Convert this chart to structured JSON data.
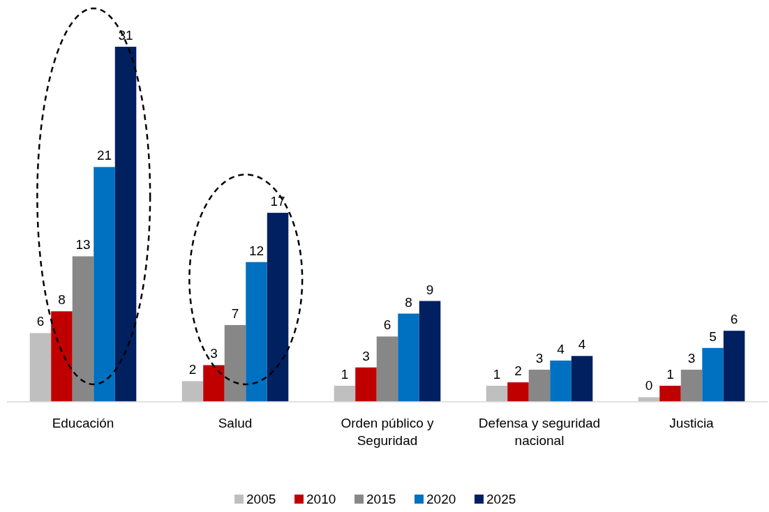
{
  "chart_data": {
    "type": "bar",
    "categories": [
      "Educación",
      "Salud",
      "Orden público y Seguridad",
      "Defensa y seguridad nacional",
      "Justicia"
    ],
    "series": [
      {
        "name": "2005",
        "color": "#bfbfbf",
        "values": [
          6.0,
          1.8,
          1.4,
          1.4,
          0.4
        ],
        "value_labels": [
          "6",
          "2",
          "1",
          "1",
          "0"
        ]
      },
      {
        "name": "2010",
        "color": "#c00000",
        "values": [
          7.9,
          3.2,
          3.0,
          1.7,
          1.4
        ],
        "value_labels": [
          "8",
          "3",
          "3",
          "2",
          "1"
        ]
      },
      {
        "name": "2015",
        "color": "#878787",
        "values": [
          12.7,
          6.7,
          5.7,
          2.8,
          2.8
        ],
        "value_labels": [
          "13",
          "7",
          "6",
          "3",
          "3"
        ]
      },
      {
        "name": "2020",
        "color": "#0070c0",
        "values": [
          20.5,
          12.2,
          7.7,
          3.6,
          4.7
        ],
        "value_labels": [
          "21",
          "12",
          "8",
          "4",
          "5"
        ]
      },
      {
        "name": "2025",
        "color": "#002060",
        "values": [
          31.0,
          16.5,
          8.8,
          4.0,
          6.2
        ],
        "value_labels": [
          "31",
          "17",
          "9",
          "4",
          "6"
        ]
      }
    ],
    "legend": "bottom"
  }
}
